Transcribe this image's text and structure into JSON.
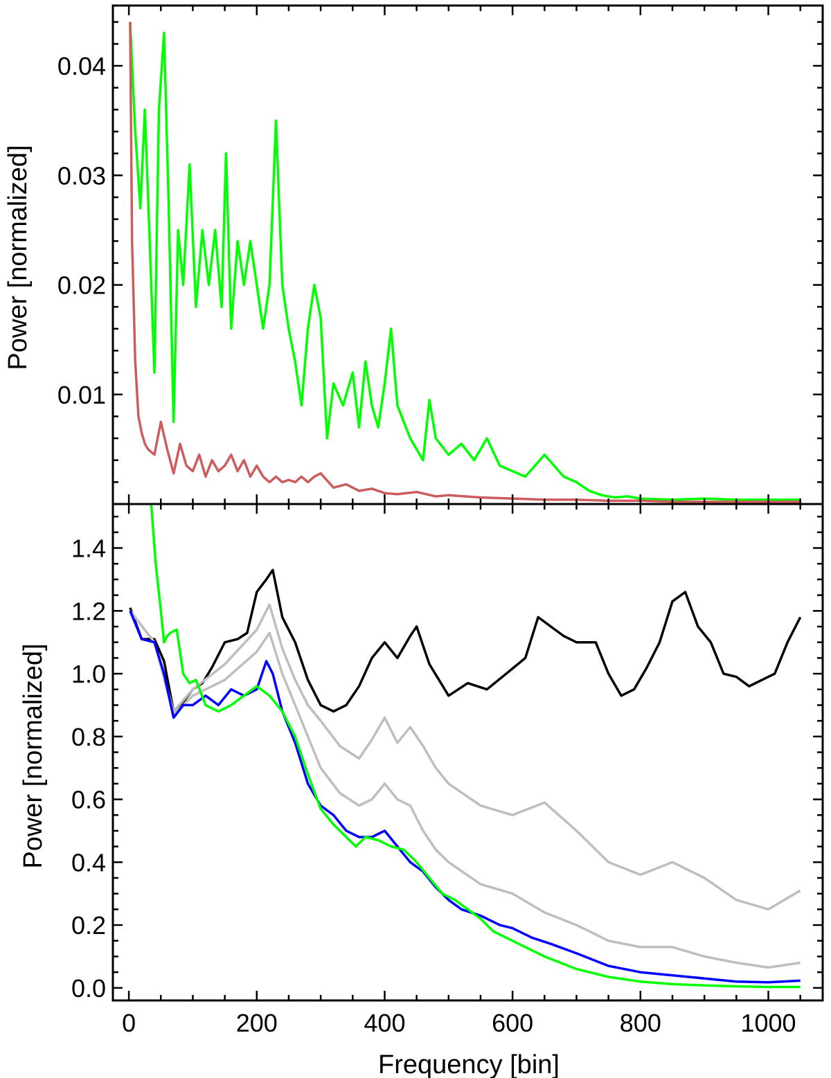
{
  "chart_data": [
    {
      "type": "line",
      "panel": "top",
      "title": "",
      "xlabel": "",
      "ylabel": "Power [normalized]",
      "xlim": [
        -25,
        1085
      ],
      "ylim": [
        0.0,
        0.0455
      ],
      "xticks": [
        0,
        200,
        400,
        600,
        800,
        1000
      ],
      "xtick_labels": [],
      "yticks": [
        0.01,
        0.02,
        0.03,
        0.04
      ],
      "ytick_labels": [
        "0.01",
        "0.02",
        "0.03",
        "0.04"
      ],
      "grid": false,
      "series": [
        {
          "color": "#00ff00",
          "x": [
            2,
            10,
            18,
            25,
            32,
            40,
            47,
            55,
            62,
            70,
            77,
            85,
            95,
            105,
            115,
            125,
            135,
            145,
            152,
            160,
            170,
            180,
            190,
            200,
            210,
            220,
            230,
            240,
            250,
            260,
            270,
            280,
            290,
            300,
            310,
            320,
            335,
            350,
            360,
            370,
            380,
            390,
            400,
            410,
            420,
            440,
            460,
            470,
            480,
            500,
            520,
            540,
            560,
            580,
            600,
            620,
            650,
            680,
            700,
            720,
            740,
            760,
            780,
            800,
            850,
            900,
            950,
            1000,
            1050
          ],
          "y": [
            0.044,
            0.034,
            0.027,
            0.036,
            0.025,
            0.012,
            0.036,
            0.043,
            0.028,
            0.0075,
            0.025,
            0.02,
            0.031,
            0.018,
            0.025,
            0.02,
            0.025,
            0.018,
            0.032,
            0.016,
            0.024,
            0.02,
            0.024,
            0.02,
            0.016,
            0.02,
            0.035,
            0.02,
            0.016,
            0.013,
            0.009,
            0.016,
            0.02,
            0.017,
            0.006,
            0.011,
            0.009,
            0.012,
            0.007,
            0.013,
            0.009,
            0.007,
            0.011,
            0.016,
            0.009,
            0.006,
            0.004,
            0.0095,
            0.006,
            0.0045,
            0.0055,
            0.004,
            0.006,
            0.0035,
            0.003,
            0.0025,
            0.0045,
            0.0025,
            0.002,
            0.0012,
            0.0008,
            0.0006,
            0.0007,
            0.0005,
            0.0004,
            0.0005,
            0.0004,
            0.0004,
            0.0004
          ]
        },
        {
          "color": "#cd5c5c",
          "x": [
            2,
            5,
            10,
            15,
            20,
            25,
            30,
            40,
            50,
            60,
            70,
            80,
            90,
            100,
            110,
            120,
            130,
            140,
            150,
            160,
            170,
            180,
            190,
            200,
            210,
            220,
            230,
            240,
            250,
            260,
            270,
            280,
            290,
            300,
            320,
            340,
            360,
            380,
            400,
            420,
            450,
            480,
            500,
            550,
            600,
            650,
            700,
            750,
            800,
            850,
            900,
            950,
            1000,
            1050
          ],
          "y": [
            0.044,
            0.024,
            0.013,
            0.008,
            0.0065,
            0.0055,
            0.005,
            0.0045,
            0.0075,
            0.005,
            0.0028,
            0.0055,
            0.0035,
            0.003,
            0.0045,
            0.0025,
            0.004,
            0.003,
            0.0035,
            0.0045,
            0.003,
            0.004,
            0.0025,
            0.0035,
            0.0025,
            0.002,
            0.0025,
            0.002,
            0.0022,
            0.002,
            0.0025,
            0.002,
            0.0025,
            0.0028,
            0.0015,
            0.0018,
            0.0012,
            0.0014,
            0.001,
            0.0009,
            0.0011,
            0.0007,
            0.0008,
            0.0006,
            0.0005,
            0.0004,
            0.0004,
            0.0003,
            0.0003,
            0.0002,
            0.0002,
            0.0002,
            0.0002,
            0.0002
          ]
        }
      ]
    },
    {
      "type": "line",
      "panel": "bottom",
      "title": "",
      "xlabel": "Frequency [bin]",
      "ylabel": "Power [normalized]",
      "xlim": [
        -25,
        1085
      ],
      "ylim": [
        -0.04,
        1.54
      ],
      "xticks": [
        0,
        200,
        400,
        600,
        800,
        1000
      ],
      "xtick_labels": [
        "0",
        "200",
        "400",
        "600",
        "800",
        "1000"
      ],
      "yticks": [
        0.0,
        0.2,
        0.4,
        0.6,
        0.8,
        1.0,
        1.2,
        1.4
      ],
      "ytick_labels": [
        "0.0",
        "0.2",
        "0.4",
        "0.6",
        "0.8",
        "1.0",
        "1.2",
        "1.4"
      ],
      "grid": false,
      "series": [
        {
          "color": "#000000",
          "x": [
            2,
            20,
            40,
            55,
            70,
            85,
            100,
            115,
            130,
            150,
            170,
            185,
            200,
            215,
            225,
            240,
            260,
            280,
            300,
            320,
            340,
            360,
            380,
            400,
            420,
            440,
            450,
            470,
            500,
            530,
            560,
            590,
            620,
            640,
            660,
            680,
            700,
            730,
            750,
            770,
            790,
            810,
            830,
            850,
            870,
            890,
            910,
            930,
            950,
            970,
            990,
            1010,
            1030,
            1050
          ],
          "y": [
            1.21,
            1.11,
            1.11,
            1.04,
            0.88,
            0.91,
            0.95,
            0.97,
            1.02,
            1.1,
            1.11,
            1.13,
            1.26,
            1.3,
            1.33,
            1.18,
            1.1,
            0.98,
            0.9,
            0.88,
            0.9,
            0.96,
            1.05,
            1.1,
            1.05,
            1.12,
            1.15,
            1.03,
            0.93,
            0.97,
            0.95,
            1.0,
            1.05,
            1.18,
            1.15,
            1.12,
            1.1,
            1.1,
            1.0,
            0.93,
            0.95,
            1.02,
            1.1,
            1.23,
            1.26,
            1.15,
            1.1,
            1.0,
            0.99,
            0.96,
            0.98,
            1.0,
            1.1,
            1.18
          ]
        },
        {
          "color": "#bebebe",
          "x": [
            2,
            40,
            70,
            100,
            150,
            200,
            220,
            240,
            260,
            280,
            300,
            330,
            360,
            380,
            400,
            420,
            440,
            460,
            480,
            500,
            550,
            600,
            650,
            700,
            750,
            800,
            850,
            900,
            950,
            1000,
            1050
          ],
          "y": [
            1.2,
            1.1,
            0.88,
            0.95,
            1.03,
            1.14,
            1.22,
            1.08,
            0.98,
            0.9,
            0.85,
            0.77,
            0.73,
            0.79,
            0.86,
            0.78,
            0.83,
            0.77,
            0.7,
            0.65,
            0.58,
            0.55,
            0.59,
            0.5,
            0.4,
            0.36,
            0.4,
            0.35,
            0.28,
            0.25,
            0.31
          ]
        },
        {
          "color": "#bebebe",
          "x": [
            2,
            40,
            70,
            100,
            150,
            200,
            220,
            240,
            260,
            280,
            300,
            330,
            360,
            380,
            400,
            420,
            440,
            460,
            480,
            500,
            550,
            600,
            650,
            700,
            750,
            800,
            850,
            900,
            950,
            1000,
            1050
          ],
          "y": [
            1.2,
            1.1,
            0.87,
            0.93,
            0.98,
            1.07,
            1.13,
            1.0,
            0.9,
            0.8,
            0.7,
            0.62,
            0.58,
            0.6,
            0.65,
            0.6,
            0.58,
            0.5,
            0.44,
            0.4,
            0.33,
            0.3,
            0.24,
            0.2,
            0.15,
            0.13,
            0.13,
            0.1,
            0.08,
            0.065,
            0.08
          ]
        },
        {
          "color": "#0000ff",
          "x": [
            2,
            20,
            40,
            55,
            70,
            85,
            100,
            120,
            140,
            160,
            180,
            200,
            215,
            225,
            240,
            260,
            280,
            300,
            320,
            340,
            360,
            380,
            400,
            420,
            440,
            460,
            480,
            500,
            520,
            550,
            580,
            600,
            630,
            660,
            700,
            750,
            800,
            850,
            900,
            950,
            1000,
            1050
          ],
          "y": [
            1.2,
            1.11,
            1.1,
            1.0,
            0.86,
            0.9,
            0.9,
            0.93,
            0.9,
            0.95,
            0.93,
            0.95,
            1.04,
            1.0,
            0.88,
            0.78,
            0.65,
            0.58,
            0.55,
            0.5,
            0.48,
            0.48,
            0.5,
            0.45,
            0.4,
            0.37,
            0.32,
            0.28,
            0.25,
            0.23,
            0.2,
            0.19,
            0.16,
            0.14,
            0.11,
            0.07,
            0.05,
            0.04,
            0.03,
            0.02,
            0.018,
            0.023
          ]
        },
        {
          "color": "#00ff00",
          "x": [
            35,
            42,
            50,
            55,
            60,
            65,
            75,
            85,
            95,
            105,
            120,
            140,
            160,
            180,
            200,
            220,
            240,
            260,
            280,
            300,
            320,
            340,
            355,
            370,
            390,
            410,
            430,
            450,
            470,
            490,
            510,
            530,
            550,
            570,
            600,
            650,
            700,
            750,
            800,
            850,
            900,
            950,
            1000,
            1050
          ],
          "y": [
            1.54,
            1.35,
            1.2,
            1.1,
            1.12,
            1.13,
            1.14,
            1.0,
            0.97,
            0.98,
            0.9,
            0.88,
            0.9,
            0.93,
            0.96,
            0.93,
            0.88,
            0.8,
            0.68,
            0.57,
            0.52,
            0.48,
            0.45,
            0.48,
            0.47,
            0.45,
            0.44,
            0.4,
            0.35,
            0.3,
            0.28,
            0.25,
            0.22,
            0.18,
            0.15,
            0.1,
            0.06,
            0.035,
            0.02,
            0.012,
            0.008,
            0.005,
            0.003,
            0.003
          ]
        }
      ]
    }
  ]
}
